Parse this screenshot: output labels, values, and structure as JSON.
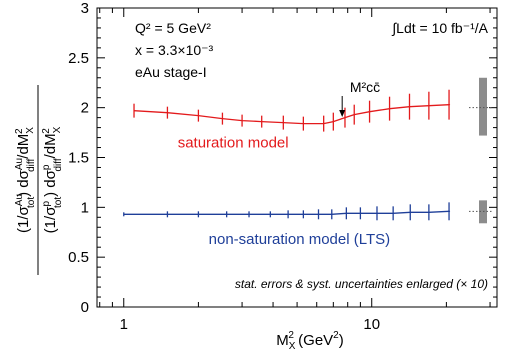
{
  "chart_data": {
    "type": "line",
    "xscale": "log",
    "xlim": [
      0.78,
      32
    ],
    "ylim": [
      0,
      3
    ],
    "xticks_major": [
      1,
      10
    ],
    "xtick_labels": [
      "1",
      "10"
    ],
    "yticks": [
      0,
      0.5,
      1,
      1.5,
      2,
      2.5,
      3
    ],
    "ytick_labels": [
      "0",
      "0.5",
      "1",
      "1.5",
      "2",
      "2.5",
      "3"
    ],
    "xlabel": "M_X^2 (GeV^2)",
    "ylabel": "(1/σ_tot^Au) dσ_diff^Au/dM_X^2 / (1/σ_tot^p) dσ_diff^p/dM_X^2",
    "annotations": {
      "q2": "Q² = 5 GeV²",
      "x": "x = 3.3×10⁻³",
      "stage": "eAu stage-I",
      "lumi": "∫Ldt = 10 fb⁻¹/A",
      "mcc": "M²cc̄",
      "errors_note": "stat. errors & syst. uncertainties enlarged (× 10)"
    },
    "mcc_arrow_x": 7.6,
    "series": [
      {
        "name": "saturation model",
        "color": "#e31a1c",
        "x": [
          1.1,
          1.5,
          2.0,
          2.5,
          3.0,
          3.6,
          4.4,
          5.3,
          6.4,
          7.0,
          7.8,
          8.5,
          9.8,
          11.8,
          14.2,
          17.0,
          20.5
        ],
        "y": [
          1.97,
          1.95,
          1.92,
          1.89,
          1.87,
          1.86,
          1.85,
          1.84,
          1.84,
          1.86,
          1.9,
          1.93,
          1.96,
          1.99,
          2.01,
          2.02,
          2.03
        ],
        "errors": [
          0.07,
          0.06,
          0.06,
          0.06,
          0.06,
          0.06,
          0.07,
          0.07,
          0.08,
          0.09,
          0.1,
          0.1,
          0.11,
          0.12,
          0.13,
          0.14,
          0.15
        ]
      },
      {
        "name": "non-saturation model (LTS)",
        "color": "#1f3f99",
        "x": [
          1.0,
          1.5,
          2.0,
          2.6,
          3.2,
          3.9,
          4.6,
          5.3,
          6.1,
          6.9,
          7.9,
          9.0,
          10.5,
          12.2,
          14.3,
          17.0,
          20.5
        ],
        "y": [
          0.93,
          0.93,
          0.93,
          0.93,
          0.93,
          0.93,
          0.93,
          0.93,
          0.93,
          0.93,
          0.94,
          0.94,
          0.94,
          0.94,
          0.95,
          0.95,
          0.96
        ],
        "errors": [
          0.02,
          0.03,
          0.03,
          0.03,
          0.03,
          0.03,
          0.04,
          0.04,
          0.05,
          0.05,
          0.06,
          0.06,
          0.07,
          0.07,
          0.08,
          0.08,
          0.09
        ]
      }
    ],
    "syst_bands": [
      {
        "y": 2.0,
        "low": 1.72,
        "high": 2.3
      },
      {
        "y": 0.96,
        "low": 0.84,
        "high": 1.07
      }
    ],
    "grid": false,
    "legend": "none"
  }
}
